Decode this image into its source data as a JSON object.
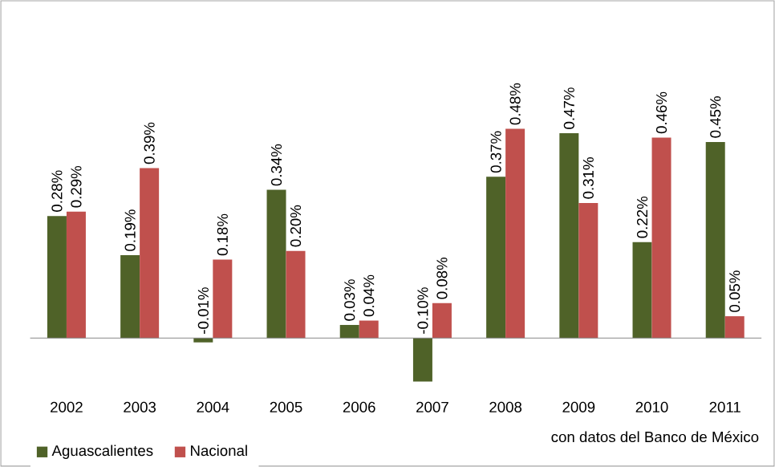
{
  "chart_data": {
    "type": "bar",
    "categories": [
      "2002",
      "2003",
      "2004",
      "2005",
      "2006",
      "2007",
      "2008",
      "2009",
      "2010",
      "2011"
    ],
    "series": [
      {
        "name": "Aguascalientes",
        "color": "#4f6228",
        "values": [
          0.28,
          0.19,
          -0.01,
          0.34,
          0.03,
          -0.1,
          0.37,
          0.47,
          0.22,
          0.45
        ],
        "value_labels": [
          "0.28%",
          "0.19%",
          "-0.01%",
          "0.34%",
          "0.03%",
          "-0.10%",
          "0.37%",
          "0.47%",
          "0.22%",
          "0.45%"
        ]
      },
      {
        "name": "Nacional",
        "color": "#c0504d",
        "values": [
          0.29,
          0.39,
          0.18,
          0.2,
          0.04,
          0.08,
          0.48,
          0.31,
          0.46,
          0.05
        ],
        "value_labels": [
          "0.29%",
          "0.39%",
          "0.18%",
          "0.20%",
          "0.04%",
          "0.08%",
          "0.48%",
          "0.31%",
          "0.46%",
          "0.05%"
        ]
      }
    ],
    "legend": "bottom left",
    "annotations": [
      "con datos del Banco de México"
    ]
  }
}
